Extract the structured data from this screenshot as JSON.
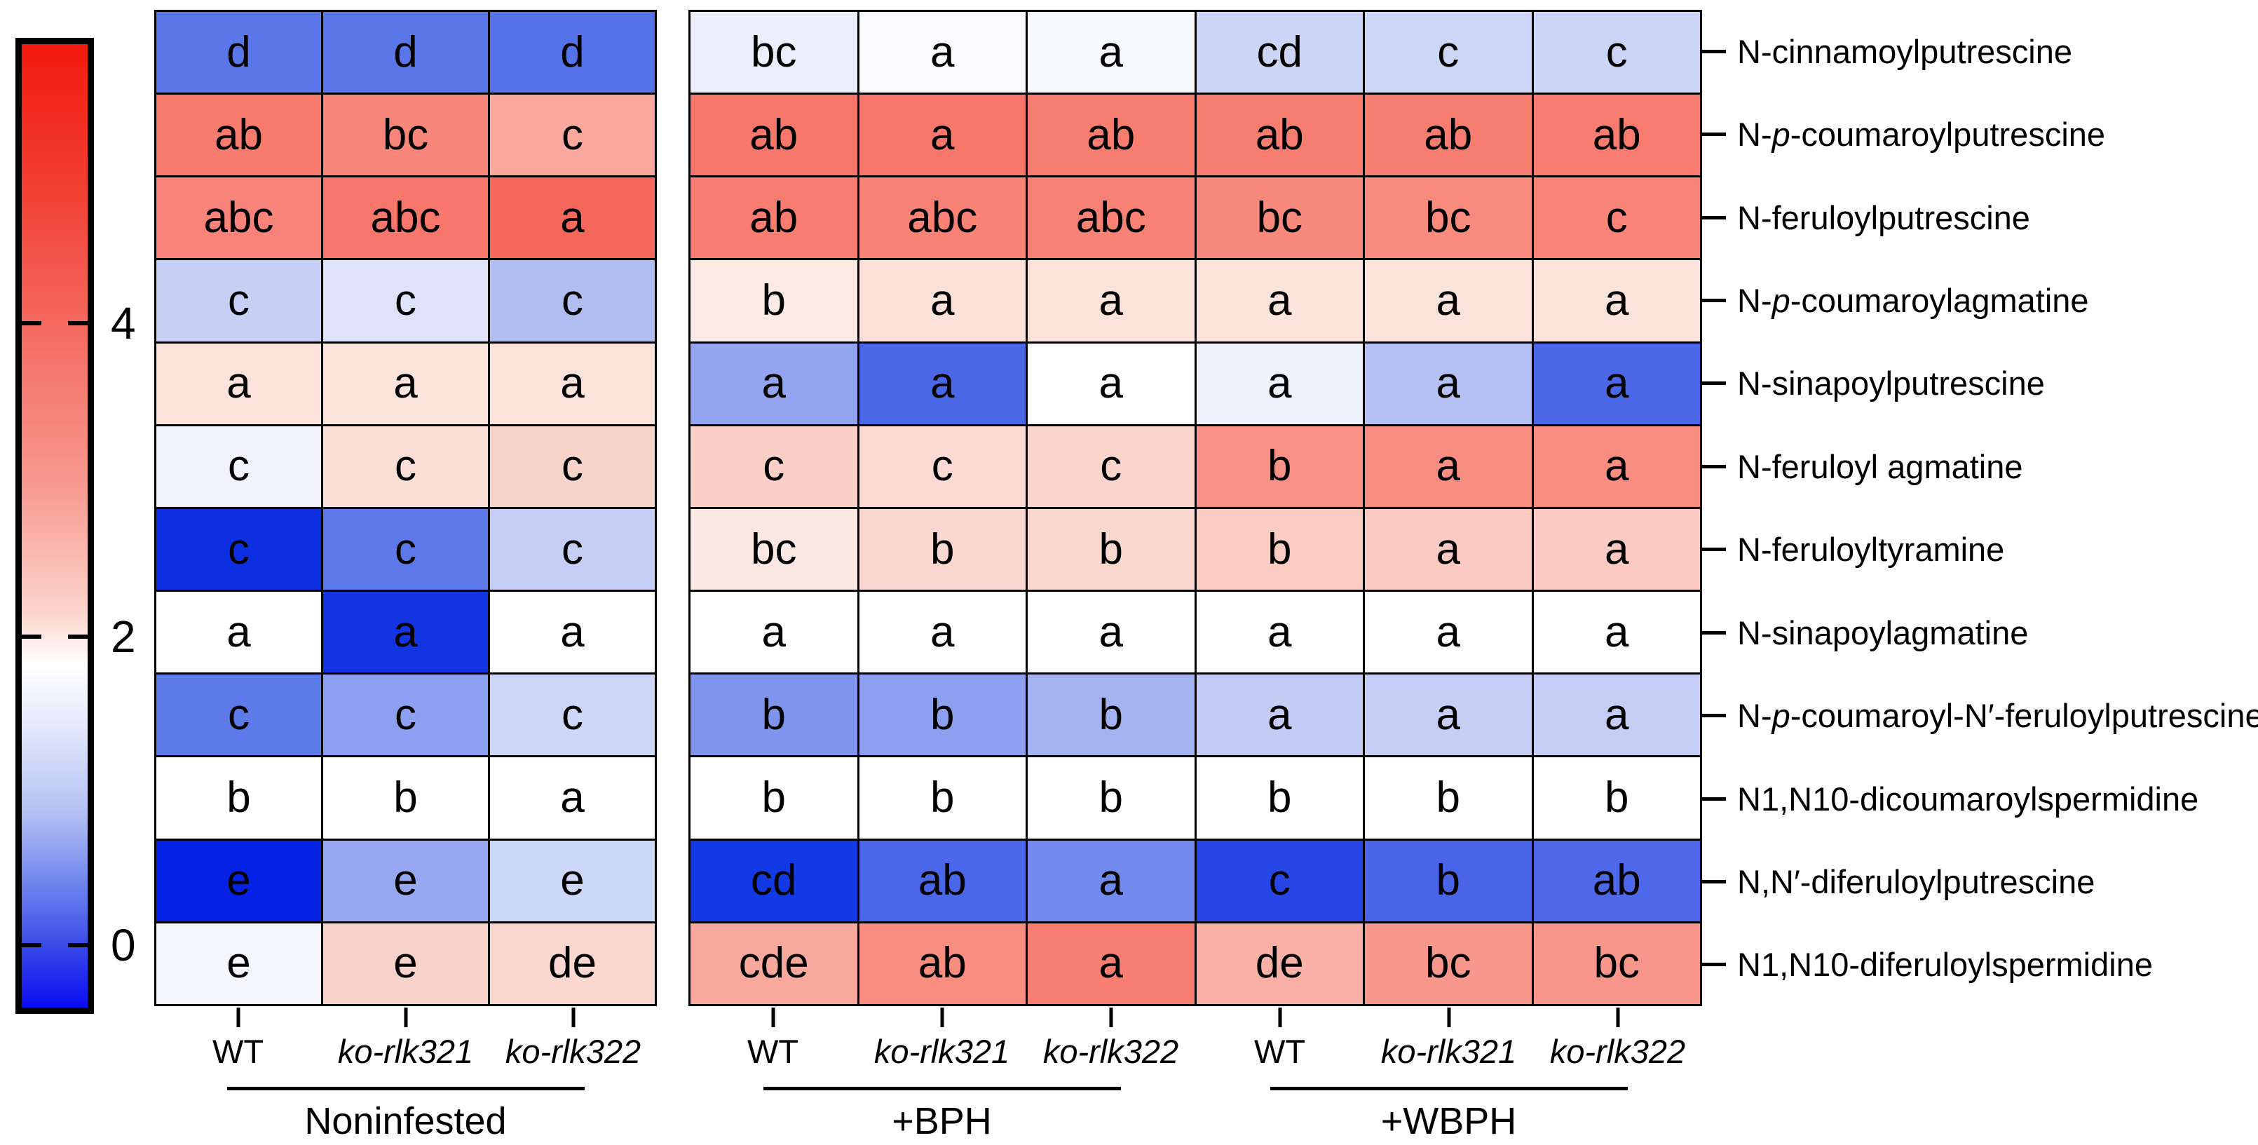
{
  "chart_data": {
    "type": "heatmap",
    "title": "",
    "colorbar": {
      "tick_labels": [
        "4",
        "2",
        "0"
      ],
      "tick_positions_pct": [
        29,
        61.5,
        93.5
      ],
      "top_color": "#f2190e",
      "bottom_color": "#0b0bf2",
      "gradient_stops": [
        "#f2190e 0%",
        "#f23f33 15%",
        "#f4695e 29%",
        "#f79a90 46%",
        "#fcd4cd 59%",
        "#ffffff 64.5%",
        "#e3e8fb 71%",
        "#b3bff4 80%",
        "#7185ee 87%",
        "#3a4ce8 93.5%",
        "#0b0bf2 100%"
      ]
    },
    "column_groups": [
      {
        "label": "Noninfested",
        "columns": [
          "WT",
          "ko-rlk321",
          "ko-rlk322"
        ],
        "italic": [
          false,
          true,
          true
        ]
      },
      {
        "label": "+BPH",
        "columns": [
          "WT",
          "ko-rlk321",
          "ko-rlk322"
        ],
        "italic": [
          false,
          true,
          true
        ]
      },
      {
        "label": "+WBPH",
        "columns": [
          "WT",
          "ko-rlk321",
          "ko-rlk322"
        ],
        "italic": [
          false,
          true,
          true
        ]
      }
    ],
    "rows": [
      {
        "label": "N-cinnamoylputrescine",
        "letters": [
          "d",
          "d",
          "d",
          "bc",
          "a",
          "a",
          "cd",
          "c",
          "c"
        ],
        "colors": [
          "#5b76e9",
          "#5b76e9",
          "#5672e8",
          "#eceefb",
          "#fbfbfe",
          "#f8f9fd",
          "#cdd5f6",
          "#ced6f6",
          "#ccd4f6"
        ]
      },
      {
        "label": "N-*p*-coumaroylputrescine",
        "letters": [
          "ab",
          "bc",
          "c",
          "ab",
          "a",
          "ab",
          "ab",
          "ab",
          "ab"
        ],
        "colors": [
          "#f87c6e",
          "#f8867b",
          "#fba89e",
          "#f8776b",
          "#f8776b",
          "#f87d71",
          "#f87d71",
          "#f87d71",
          "#f87c70"
        ]
      },
      {
        "label": "N-feruloylputrescine",
        "letters": [
          "abc",
          "abc",
          "a",
          "ab",
          "abc",
          "abc",
          "bc",
          "bc",
          "c"
        ],
        "colors": [
          "#f8837a",
          "#f7766c",
          "#f7685c",
          "#f87c70",
          "#f88276",
          "#f88175",
          "#f8897d",
          "#f88a7e",
          "#f88478"
        ]
      },
      {
        "label": "N-*p*-coumaroylagmatine",
        "letters": [
          "c",
          "c",
          "c",
          "b",
          "a",
          "a",
          "a",
          "a",
          "a"
        ],
        "colors": [
          "#c7d0f4",
          "#dfe3f9",
          "#b0bdf1",
          "#fcebe4",
          "#fbe1d9",
          "#fbe2da",
          "#fce4dd",
          "#fbe3db",
          "#fbe2da"
        ]
      },
      {
        "label": "N-sinapoylputrescine",
        "letters": [
          "a",
          "a",
          "a",
          "a",
          "a",
          "a",
          "a",
          "a",
          "a"
        ],
        "colors": [
          "#fbe2da",
          "#fbe4dc",
          "#fbe3db",
          "#93a4f0",
          "#4a67e6",
          "#fefefe",
          "#eff1fc",
          "#b5c0f4",
          "#4c66e8"
        ]
      },
      {
        "label": "N-feruloyl agmatine",
        "letters": [
          "c",
          "c",
          "c",
          "c",
          "c",
          "c",
          "b",
          "a",
          "a"
        ],
        "colors": [
          "#f1f2fb",
          "#f9dfd6",
          "#f7d4c9",
          "#f9cfc7",
          "#fcdad3",
          "#fad5cc",
          "#f89186",
          "#f88e81",
          "#f88d80"
        ]
      },
      {
        "label": "N-feruloyltyramine",
        "letters": [
          "c",
          "c",
          "c",
          "bc",
          "b",
          "b",
          "b",
          "a",
          "a"
        ],
        "colors": [
          "#0e2ee2",
          "#5d78e8",
          "#c5cdf5",
          "#fce8e2",
          "#fad7d0",
          "#fad8d0",
          "#fbccc4",
          "#fbcac2",
          "#fbcbc3"
        ]
      },
      {
        "label": "N-sinapoylagmatine",
        "letters": [
          "a",
          "a",
          "a",
          "a",
          "a",
          "a",
          "a",
          "a",
          "a"
        ],
        "colors": [
          "#ffffff",
          "#1235e1",
          "#ffffff",
          "#ffffff",
          "#ffffff",
          "#ffffff",
          "#ffffff",
          "#ffffff",
          "#ffffff"
        ]
      },
      {
        "label": "N-*p*-coumaroyl-N′-feruloylputrescine",
        "letters": [
          "c",
          "c",
          "c",
          "b",
          "b",
          "b",
          "a",
          "a",
          "a"
        ],
        "colors": [
          "#5d7ae9",
          "#8c9ff0",
          "#ced6f7",
          "#8094ee",
          "#8da0f0",
          "#a4b2f2",
          "#c4ccf5",
          "#c6cef5",
          "#c5cdf5"
        ]
      },
      {
        "label": "N1,N10-dicoumaroylspermidine",
        "letters": [
          "b",
          "b",
          "a",
          "b",
          "b",
          "b",
          "b",
          "b",
          "b"
        ],
        "colors": [
          "#ffffff",
          "#ffffff",
          "#ffffff",
          "#ffffff",
          "#ffffff",
          "#ffffff",
          "#ffffff",
          "#ffffff",
          "#ffffff"
        ]
      },
      {
        "label": "N,N′-diferuloylputrescine",
        "letters": [
          "e",
          "e",
          "e",
          "cd",
          "ab",
          "a",
          "c",
          "b",
          "ab"
        ],
        "colors": [
          "#0522e4",
          "#97a7f1",
          "#cdd7f7",
          "#1239e4",
          "#4a67ea",
          "#7289ee",
          "#2746e5",
          "#4a64e8",
          "#4f68e9"
        ]
      },
      {
        "label": "N1,N10-diferuloylspermidine",
        "letters": [
          "e",
          "e",
          "de",
          "cde",
          "ab",
          "a",
          "de",
          "bc",
          "bc"
        ],
        "colors": [
          "#f5f6fc",
          "#f8d3cb",
          "#f9d7ce",
          "#f9a89d",
          "#f88d80",
          "#f87f72",
          "#f9b1a7",
          "#f8978c",
          "#f8968b"
        ]
      }
    ],
    "layout": {
      "grid_line_color": "#000000",
      "cell_text_color": "#000000",
      "legend_position": "left"
    }
  }
}
